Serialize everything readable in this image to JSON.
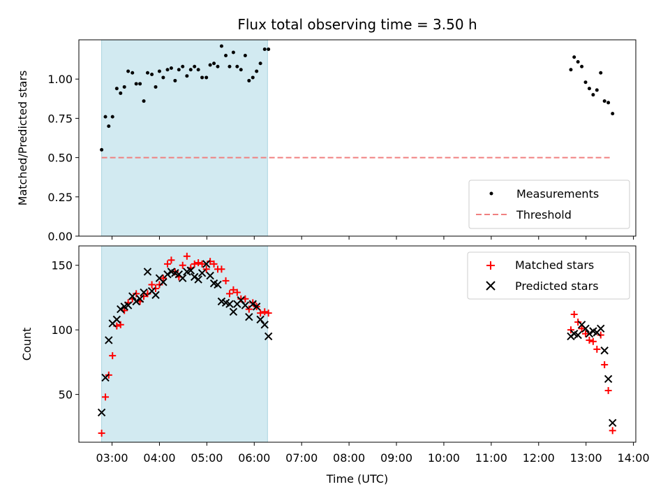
{
  "chart_data": {
    "type": "scatter",
    "title": "Flux total observing time = 3.50 h",
    "xlabel": "Time (UTC)",
    "x_ticks": [
      "03:00",
      "04:00",
      "05:00",
      "06:00",
      "07:00",
      "08:00",
      "09:00",
      "10:00",
      "11:00",
      "12:00",
      "13:00",
      "14:00"
    ],
    "x_range_hours": [
      2.3,
      14.05
    ],
    "observing_window_hours": [
      2.78,
      6.28
    ],
    "colors": {
      "band": "#d2eaf1",
      "measurements": "#000000",
      "threshold": "#f08080",
      "matched": "#ff0000",
      "predicted": "#000000"
    },
    "top": {
      "ylabel": "Matched/Predicted stars",
      "ylim": [
        0,
        1.25
      ],
      "yticks": [
        "0.00",
        "0.25",
        "0.50",
        "0.75",
        "1.00"
      ],
      "threshold": 0.5,
      "threshold_x_hours": [
        2.78,
        13.55
      ],
      "legend": {
        "position": "lower-right",
        "measurements_label": "Measurements",
        "threshold_label": "Threshold"
      },
      "measurements": {
        "x": [
          2.78,
          2.86,
          2.93,
          3.01,
          3.1,
          3.18,
          3.26,
          3.34,
          3.43,
          3.51,
          3.59,
          3.67,
          3.75,
          3.84,
          3.92,
          4.0,
          4.08,
          4.17,
          4.25,
          4.33,
          4.41,
          4.49,
          4.58,
          4.66,
          4.74,
          4.82,
          4.9,
          4.99,
          5.07,
          5.15,
          5.23,
          5.31,
          5.4,
          5.48,
          5.56,
          5.64,
          5.72,
          5.81,
          5.89,
          5.97,
          6.05,
          6.13,
          6.22,
          6.3,
          12.68,
          12.75,
          12.83,
          12.91,
          12.99,
          13.07,
          13.15,
          13.23,
          13.31,
          13.39,
          13.47,
          13.56
        ],
        "y": [
          0.55,
          0.76,
          0.7,
          0.76,
          0.94,
          0.91,
          0.95,
          1.05,
          1.04,
          0.97,
          0.97,
          0.86,
          1.04,
          1.03,
          0.95,
          1.05,
          1.01,
          1.06,
          1.07,
          0.99,
          1.06,
          1.08,
          1.02,
          1.06,
          1.08,
          1.06,
          1.01,
          1.01,
          1.09,
          1.1,
          1.08,
          1.21,
          1.15,
          1.08,
          1.17,
          1.08,
          1.06,
          1.15,
          0.99,
          1.01,
          1.05,
          1.1,
          1.19,
          1.19,
          1.06,
          1.14,
          1.11,
          1.08,
          0.98,
          0.94,
          0.9,
          0.93,
          1.04,
          0.86,
          0.85,
          0.78
        ]
      }
    },
    "bottom": {
      "ylabel": "Count",
      "ylim": [
        13,
        165
      ],
      "yticks": [
        "50",
        "100",
        "150"
      ],
      "legend": {
        "position": "top-right",
        "matched_label": "Matched stars",
        "predicted_label": "Predicted stars"
      },
      "matched": {
        "x": [
          2.78,
          2.86,
          2.93,
          3.01,
          3.1,
          3.18,
          3.26,
          3.34,
          3.43,
          3.51,
          3.59,
          3.67,
          3.75,
          3.84,
          3.92,
          4.0,
          4.08,
          4.17,
          4.25,
          4.33,
          4.41,
          4.49,
          4.58,
          4.66,
          4.74,
          4.82,
          4.9,
          4.99,
          5.07,
          5.15,
          5.23,
          5.31,
          5.4,
          5.48,
          5.56,
          5.64,
          5.72,
          5.81,
          5.89,
          5.97,
          6.05,
          6.13,
          6.22,
          6.3,
          12.68,
          12.75,
          12.83,
          12.91,
          12.99,
          13.07,
          13.15,
          13.23,
          13.31,
          13.39,
          13.47,
          13.56
        ],
        "y": [
          20,
          48,
          65,
          80,
          103,
          104,
          115,
          121,
          124,
          128,
          122,
          126,
          128,
          135,
          132,
          135,
          140,
          151,
          154,
          145,
          141,
          150,
          157,
          148,
          151,
          152,
          151,
          147,
          153,
          151,
          147,
          147,
          138,
          128,
          131,
          129,
          124,
          124,
          116,
          121,
          118,
          113,
          114,
          113,
          100,
          112,
          106,
          101,
          97,
          92,
          91,
          85,
          96,
          73,
          53,
          22
        ]
      },
      "predicted": {
        "x": [
          2.78,
          2.86,
          2.93,
          3.01,
          3.1,
          3.18,
          3.26,
          3.34,
          3.43,
          3.51,
          3.59,
          3.67,
          3.75,
          3.84,
          3.92,
          4.0,
          4.08,
          4.17,
          4.25,
          4.33,
          4.41,
          4.49,
          4.58,
          4.66,
          4.74,
          4.82,
          4.9,
          4.99,
          5.07,
          5.15,
          5.23,
          5.31,
          5.4,
          5.48,
          5.56,
          5.64,
          5.72,
          5.81,
          5.89,
          5.97,
          6.05,
          6.13,
          6.22,
          6.3,
          12.68,
          12.75,
          12.83,
          12.91,
          12.99,
          13.07,
          13.15,
          13.23,
          13.31,
          13.39,
          13.47,
          13.56
        ],
        "y": [
          36,
          63,
          92,
          105,
          108,
          116,
          118,
          119,
          126,
          122,
          124,
          129,
          145,
          130,
          127,
          140,
          137,
          143,
          145,
          144,
          143,
          140,
          145,
          146,
          141,
          139,
          144,
          151,
          142,
          136,
          135,
          122,
          121,
          120,
          114,
          120,
          123,
          119,
          110,
          120,
          118,
          108,
          104,
          95,
          95,
          97,
          96,
          104,
          101,
          97,
          99,
          98,
          101,
          84,
          62,
          28
        ]
      }
    }
  }
}
